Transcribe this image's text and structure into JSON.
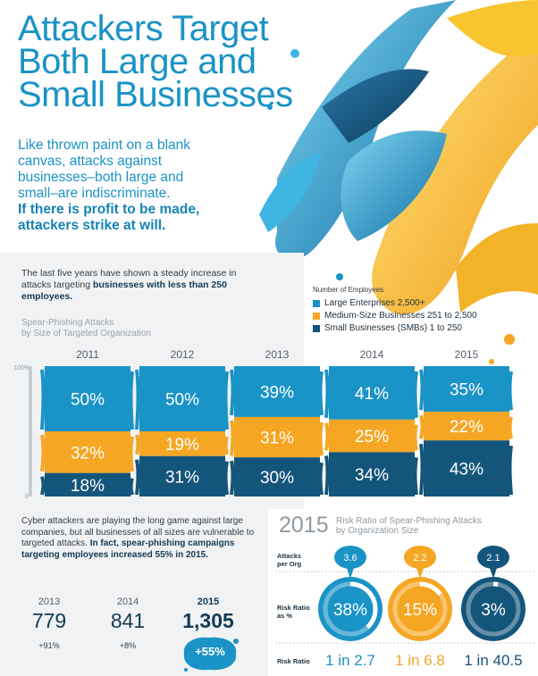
{
  "title_lines": [
    "Attackers Target",
    "Both Large and",
    "Small Businesses"
  ],
  "intro": {
    "lines": [
      "Like thrown paint on a blank",
      "canvas, attacks against",
      "businesses–both large and",
      "small–are indiscriminate."
    ],
    "strong_lines": [
      "If there is profit to be made,",
      "attackers strike at will."
    ]
  },
  "lead": {
    "text": "The last five years have shown a steady increase in attacks targeting",
    "strong": "businesses with less than 250 employees."
  },
  "colors": {
    "large": "#1a93c6",
    "medium": "#f5a623",
    "small": "#14557b",
    "accent": "#1a93c6"
  },
  "legend": {
    "title": "Number of Employees",
    "items": [
      {
        "label": "Large Enterprises 2,500+",
        "color": "#1a93c6"
      },
      {
        "label": "Medium-Size Businesses 251 to 2,500",
        "color": "#f5a623"
      },
      {
        "label": "Small Businesses (SMBs) 1 to 250",
        "color": "#14557b"
      }
    ]
  },
  "chart_data": {
    "type": "bar",
    "stacked": true,
    "title": "Spear-Phishing Attacks by Size of Targeted Organization",
    "title_lines": [
      "Spear-Phishing Attacks",
      "by Size of Targeted Organization"
    ],
    "categories": [
      "2011",
      "2012",
      "2013",
      "2014",
      "2015"
    ],
    "series": [
      {
        "name": "Large Enterprises 2,500+",
        "values": [
          50,
          50,
          39,
          41,
          35
        ]
      },
      {
        "name": "Medium-Size Businesses 251 to 2,500",
        "values": [
          32,
          19,
          31,
          25,
          22
        ]
      },
      {
        "name": "Small Businesses (SMBs) 1 to 250",
        "values": [
          18,
          31,
          30,
          34,
          43
        ]
      }
    ],
    "ylim": [
      0,
      100
    ],
    "y_ticks": [
      "100%",
      "0"
    ],
    "legend_position": "top-right"
  },
  "bottom_left": {
    "text": "Cyber attackers are playing the long game against large companies, but all businesses of all sizes are vulnerable to targeted attacks.",
    "strong": "In fact, spear-phishing campaigns targeting employees increased 55% in 2015.",
    "stats": [
      {
        "year": "2013",
        "value": "779",
        "change": "+91%"
      },
      {
        "year": "2014",
        "value": "841",
        "change": "+8%"
      },
      {
        "year": "2015",
        "value": "1,305",
        "change": "+55%"
      }
    ]
  },
  "risk": {
    "year": "2015",
    "title_lines": [
      "Risk Ratio of Spear-Phishing Attacks",
      "by Organization Size"
    ],
    "labels": {
      "attacks": [
        "Attacks",
        "per Org"
      ],
      "ratio_pct": [
        "Risk Ratio",
        "as %"
      ],
      "ratio": [
        "Risk Ratio"
      ]
    },
    "orgs": [
      {
        "attacks": "3.6",
        "pct_label": "38%",
        "pct": 38,
        "ratio": "1 in 2.7",
        "color": "#1a93c6"
      },
      {
        "attacks": "2.2",
        "pct_label": "15%",
        "pct": 15,
        "ratio": "1 in 6.8",
        "color": "#f5a623"
      },
      {
        "attacks": "2.1",
        "pct_label": "3%",
        "pct": 3,
        "ratio": "1 in 40.5",
        "color": "#14557b"
      }
    ]
  }
}
